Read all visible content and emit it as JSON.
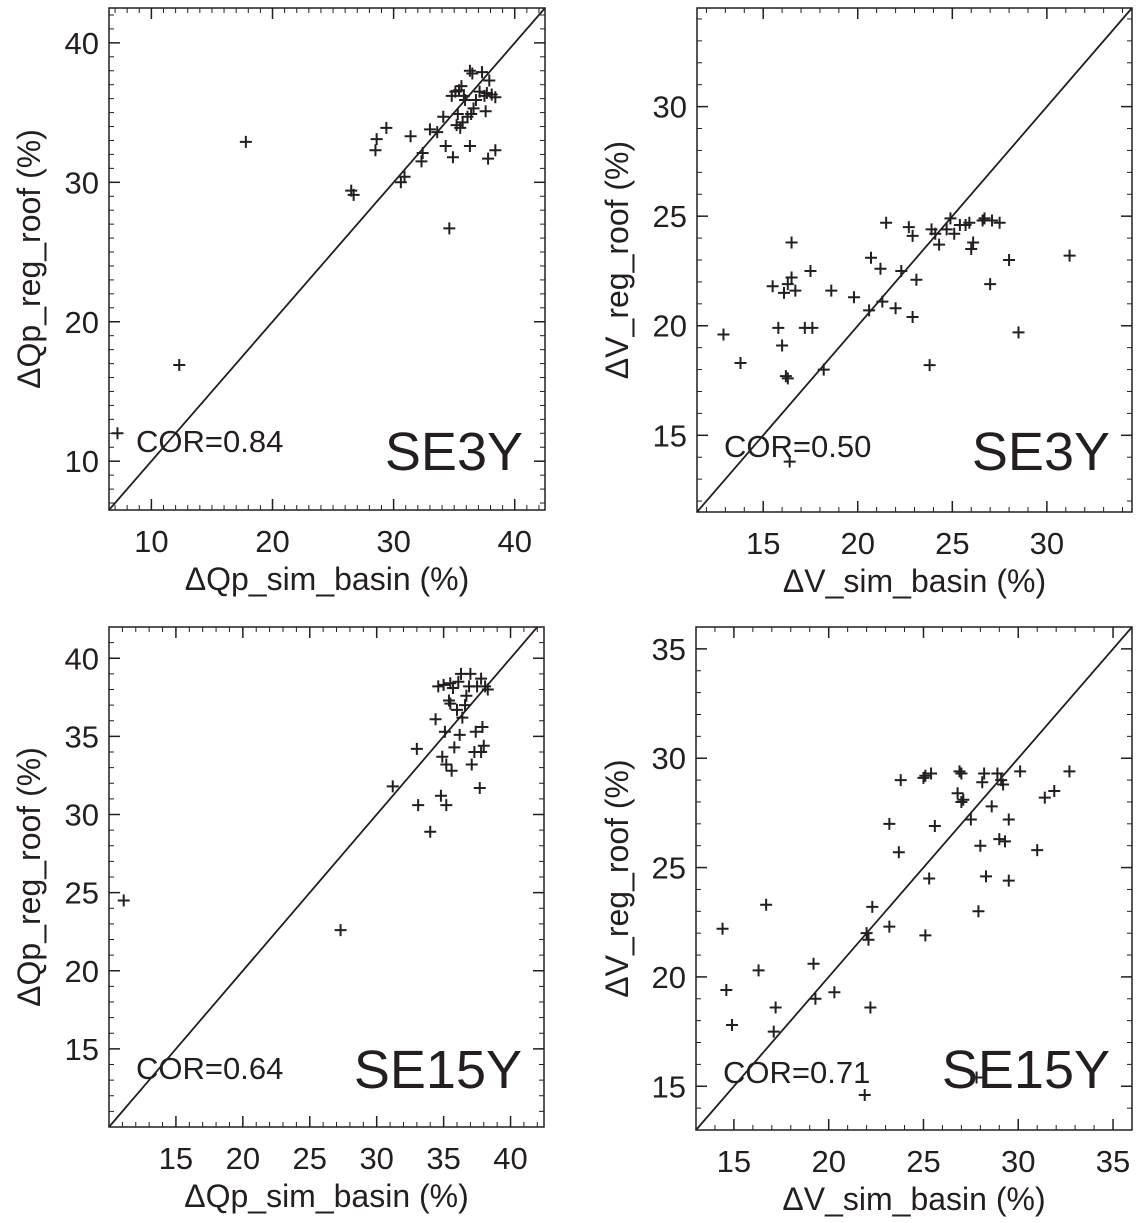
{
  "colors": {
    "ink": "#231f20",
    "background": "#ffffff"
  },
  "chart_data": [
    {
      "type": "scatter",
      "xlabel": "ΔQp_sim_basin (%)",
      "ylabel": "ΔQp_reg_roof (%)",
      "xlim": [
        6.5,
        42.5
      ],
      "ylim": [
        6.5,
        42.5
      ],
      "xticks": [
        10,
        20,
        30,
        40
      ],
      "yticks": [
        10,
        20,
        30,
        40
      ],
      "reference_line": "1:1",
      "annotation": "COR=0.84",
      "label": "SE3Y",
      "marker": "plus",
      "points": [
        [
          7.2,
          12.0
        ],
        [
          12.3,
          16.9
        ],
        [
          17.8,
          32.9
        ],
        [
          26.5,
          29.4
        ],
        [
          26.7,
          29.1
        ],
        [
          28.5,
          32.3
        ],
        [
          28.6,
          33.1
        ],
        [
          29.4,
          33.9
        ],
        [
          30.6,
          30.0
        ],
        [
          30.9,
          30.4
        ],
        [
          31.4,
          33.3
        ],
        [
          32.3,
          31.5
        ],
        [
          32.4,
          32.1
        ],
        [
          33.0,
          33.8
        ],
        [
          33.6,
          33.6
        ],
        [
          34.1,
          34.7
        ],
        [
          34.3,
          32.6
        ],
        [
          34.6,
          26.7
        ],
        [
          34.8,
          36.2
        ],
        [
          34.9,
          31.8
        ],
        [
          35.1,
          36.5
        ],
        [
          35.2,
          34.1
        ],
        [
          35.3,
          34.9
        ],
        [
          35.4,
          36.6
        ],
        [
          35.5,
          33.9
        ],
        [
          35.6,
          36.9
        ],
        [
          35.7,
          34.3
        ],
        [
          35.8,
          36.2
        ],
        [
          35.9,
          35.9
        ],
        [
          36.1,
          34.7
        ],
        [
          36.3,
          38.0
        ],
        [
          36.4,
          34.9
        ],
        [
          36.5,
          37.8
        ],
        [
          36.6,
          35.3
        ],
        [
          36.8,
          35.9
        ],
        [
          36.3,
          32.6
        ],
        [
          37.1,
          36.5
        ],
        [
          37.3,
          37.9
        ],
        [
          37.5,
          36.2
        ],
        [
          37.6,
          35.1
        ],
        [
          37.7,
          36.4
        ],
        [
          37.8,
          31.7
        ],
        [
          37.9,
          37.3
        ],
        [
          38.1,
          36.3
        ],
        [
          38.4,
          36.1
        ],
        [
          38.4,
          32.3
        ]
      ]
    },
    {
      "type": "scatter",
      "xlabel": "ΔV_sim_basin (%)",
      "ylabel": "ΔV_reg_roof (%)",
      "xlim": [
        11.5,
        34.5
      ],
      "ylim": [
        11.5,
        34.5
      ],
      "xticks": [
        15,
        20,
        25,
        30
      ],
      "yticks": [
        15,
        20,
        25,
        30
      ],
      "reference_line": "1:1",
      "annotation": "COR=0.50",
      "label": "SE3Y",
      "marker": "plus",
      "points": [
        [
          12.9,
          19.6
        ],
        [
          13.8,
          18.3
        ],
        [
          15.5,
          21.8
        ],
        [
          15.8,
          19.9
        ],
        [
          16.0,
          19.1
        ],
        [
          16.1,
          21.5
        ],
        [
          16.3,
          21.9
        ],
        [
          16.2,
          17.7
        ],
        [
          16.3,
          17.6
        ],
        [
          16.5,
          22.2
        ],
        [
          16.5,
          23.8
        ],
        [
          16.7,
          21.6
        ],
        [
          17.2,
          19.9
        ],
        [
          17.5,
          22.5
        ],
        [
          17.6,
          19.9
        ],
        [
          18.2,
          18.0
        ],
        [
          18.6,
          21.6
        ],
        [
          19.8,
          21.3
        ],
        [
          20.6,
          20.7
        ],
        [
          20.7,
          23.1
        ],
        [
          21.2,
          22.6
        ],
        [
          21.3,
          21.1
        ],
        [
          21.5,
          24.7
        ],
        [
          22.0,
          20.8
        ],
        [
          22.3,
          22.5
        ],
        [
          22.7,
          24.5
        ],
        [
          22.9,
          24.1
        ],
        [
          22.9,
          20.4
        ],
        [
          23.1,
          22.1
        ],
        [
          23.8,
          18.2
        ],
        [
          23.9,
          24.4
        ],
        [
          24.1,
          24.2
        ],
        [
          24.3,
          23.7
        ],
        [
          24.7,
          24.4
        ],
        [
          24.9,
          24.9
        ],
        [
          25.1,
          24.2
        ],
        [
          25.4,
          24.6
        ],
        [
          25.7,
          24.6
        ],
        [
          25.9,
          24.7
        ],
        [
          26.0,
          23.5
        ],
        [
          26.1,
          23.8
        ],
        [
          26.6,
          24.8
        ],
        [
          26.7,
          24.9
        ],
        [
          27.0,
          21.9
        ],
        [
          27.1,
          24.8
        ],
        [
          27.5,
          24.7
        ],
        [
          28.0,
          23.0
        ],
        [
          28.5,
          19.7
        ],
        [
          31.2,
          23.2
        ],
        [
          16.4,
          13.8
        ]
      ]
    },
    {
      "type": "scatter",
      "xlabel": "ΔQp_sim_basin (%)",
      "ylabel": "ΔQp_reg_roof (%)",
      "xlim": [
        10,
        42.5
      ],
      "ylim": [
        10,
        42
      ],
      "xticks": [
        15,
        20,
        25,
        30,
        35,
        40
      ],
      "yticks": [
        15,
        20,
        25,
        30,
        35,
        40
      ],
      "reference_line": "1:1",
      "annotation": "COR=0.64",
      "label": "SE15Y",
      "marker": "plus",
      "points": [
        [
          11.1,
          24.5
        ],
        [
          27.3,
          22.6
        ],
        [
          31.2,
          31.8
        ],
        [
          33.0,
          34.2
        ],
        [
          33.1,
          30.6
        ],
        [
          34.0,
          28.9
        ],
        [
          34.4,
          36.1
        ],
        [
          34.6,
          38.2
        ],
        [
          34.8,
          31.2
        ],
        [
          34.9,
          33.7
        ],
        [
          35.0,
          38.3
        ],
        [
          35.1,
          35.3
        ],
        [
          35.2,
          30.6
        ],
        [
          35.2,
          33.2
        ],
        [
          35.4,
          37.3
        ],
        [
          35.5,
          38.4
        ],
        [
          35.5,
          37.1
        ],
        [
          35.6,
          32.8
        ],
        [
          35.7,
          38.1
        ],
        [
          35.8,
          34.3
        ],
        [
          36.0,
          36.7
        ],
        [
          36.1,
          38.5
        ],
        [
          36.2,
          35.1
        ],
        [
          36.3,
          39.0
        ],
        [
          36.4,
          36.2
        ],
        [
          36.6,
          37.0
        ],
        [
          36.7,
          37.6
        ],
        [
          36.9,
          38.2
        ],
        [
          37.0,
          39.0
        ],
        [
          37.1,
          33.2
        ],
        [
          37.3,
          34.0
        ],
        [
          37.4,
          35.3
        ],
        [
          37.5,
          38.2
        ],
        [
          37.7,
          31.7
        ],
        [
          37.8,
          38.7
        ],
        [
          37.8,
          34.0
        ],
        [
          37.9,
          35.6
        ],
        [
          38.0,
          34.4
        ],
        [
          38.1,
          38.2
        ],
        [
          38.3,
          38.0
        ]
      ]
    },
    {
      "type": "scatter",
      "xlabel": "ΔV_sim_basin (%)",
      "ylabel": "ΔV_reg_roof (%)",
      "xlim": [
        13,
        36
      ],
      "ylim": [
        13,
        36
      ],
      "xticks": [
        15,
        20,
        25,
        30,
        35
      ],
      "yticks": [
        15,
        20,
        25,
        30,
        35
      ],
      "reference_line": "1:1",
      "annotation": "COR=0.71",
      "label": "SE15Y",
      "marker": "plus",
      "points": [
        [
          14.4,
          22.2
        ],
        [
          14.6,
          19.4
        ],
        [
          14.9,
          17.8
        ],
        [
          16.3,
          20.3
        ],
        [
          16.7,
          23.3
        ],
        [
          17.2,
          18.6
        ],
        [
          17.1,
          17.5
        ],
        [
          19.2,
          20.6
        ],
        [
          19.3,
          19.0
        ],
        [
          20.3,
          19.3
        ],
        [
          22.0,
          22.0
        ],
        [
          22.2,
          18.6
        ],
        [
          22.1,
          21.7
        ],
        [
          22.3,
          23.2
        ],
        [
          23.2,
          27.0
        ],
        [
          23.2,
          22.3
        ],
        [
          23.7,
          25.7
        ],
        [
          23.8,
          29.0
        ],
        [
          25.0,
          29.1
        ],
        [
          25.1,
          21.9
        ],
        [
          25.3,
          24.5
        ],
        [
          25.4,
          29.3
        ],
        [
          25.6,
          26.9
        ],
        [
          25.1,
          29.2
        ],
        [
          26.8,
          28.4
        ],
        [
          26.9,
          29.4
        ],
        [
          27.0,
          28.0
        ],
        [
          27.1,
          28.1
        ],
        [
          27.0,
          29.3
        ],
        [
          27.5,
          27.2
        ],
        [
          27.9,
          23.0
        ],
        [
          28.0,
          26.0
        ],
        [
          28.1,
          28.9
        ],
        [
          28.2,
          29.3
        ],
        [
          28.3,
          24.6
        ],
        [
          28.6,
          27.8
        ],
        [
          28.9,
          29.3
        ],
        [
          29.0,
          26.3
        ],
        [
          29.1,
          29.0
        ],
        [
          29.2,
          28.8
        ],
        [
          29.3,
          26.2
        ],
        [
          29.5,
          24.4
        ],
        [
          29.5,
          27.2
        ],
        [
          30.1,
          29.4
        ],
        [
          31.0,
          25.8
        ],
        [
          31.4,
          28.2
        ],
        [
          31.9,
          28.5
        ],
        [
          32.7,
          29.4
        ],
        [
          21.9,
          14.6
        ],
        [
          27.8,
          15.4
        ]
      ]
    }
  ]
}
